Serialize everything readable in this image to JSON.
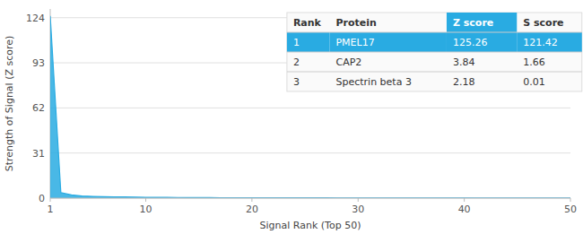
{
  "chart_data": {
    "type": "area",
    "xlabel": "Signal Rank (Top 50)",
    "ylabel": "Strength of Signal (Z score)",
    "x": [
      1,
      2,
      3,
      4,
      5,
      6,
      7,
      8,
      9,
      10,
      11,
      12,
      13,
      14,
      15,
      16,
      17,
      18,
      19,
      20,
      21,
      22,
      23,
      24,
      25,
      26,
      27,
      28,
      29,
      30,
      31,
      32,
      33,
      34,
      35,
      36,
      37,
      38,
      39,
      40,
      41,
      42,
      43,
      44,
      45,
      46,
      47,
      48,
      49,
      50
    ],
    "values": [
      125.26,
      3.84,
      2.18,
      1.5,
      1.2,
      1.0,
      0.9,
      0.8,
      0.7,
      0.6,
      0.55,
      0.5,
      0.45,
      0.42,
      0.38,
      0.35,
      0.32,
      0.3,
      0.28,
      0.26,
      0.24,
      0.22,
      0.21,
      0.2,
      0.19,
      0.18,
      0.17,
      0.16,
      0.15,
      0.14,
      0.13,
      0.12,
      0.115,
      0.11,
      0.105,
      0.1,
      0.095,
      0.09,
      0.085,
      0.08,
      0.075,
      0.07,
      0.065,
      0.06,
      0.055,
      0.05,
      0.045,
      0.04,
      0.035,
      0.03
    ],
    "color": "#29ABE2",
    "xlim": [
      1,
      50
    ],
    "ylim": [
      0,
      130
    ],
    "xticks": [
      1,
      10,
      20,
      30,
      40,
      50
    ],
    "yticks": [
      0,
      31,
      62,
      93,
      124
    ],
    "grid": true,
    "table": {
      "columns": [
        "Rank",
        "Protein",
        "Z score",
        "S score"
      ],
      "rows": [
        [
          "1",
          "PMEL17",
          "125.26",
          "121.42"
        ],
        [
          "2",
          "CAP2",
          "3.84",
          "1.66"
        ],
        [
          "3",
          "Spectrin beta 3",
          "2.18",
          "0.01"
        ]
      ]
    }
  }
}
